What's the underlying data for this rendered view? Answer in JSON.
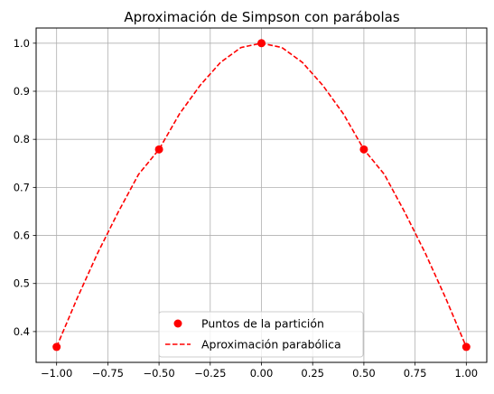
{
  "chart_data": {
    "type": "line",
    "title": "Aproximación de Simpson con parábolas",
    "xlabel": "",
    "ylabel": "",
    "xlim": [
      -1.1,
      1.1
    ],
    "ylim": [
      0.3359,
      1.0316
    ],
    "x_ticks": [
      "−1.00",
      "−0.75",
      "−0.50",
      "−0.25",
      "0.00",
      "0.25",
      "0.50",
      "0.75",
      "1.00"
    ],
    "x_tick_values": [
      -1.0,
      -0.75,
      -0.5,
      -0.25,
      0.0,
      0.25,
      0.5,
      0.75,
      1.0
    ],
    "y_ticks": [
      "0.4",
      "0.5",
      "0.6",
      "0.7",
      "0.8",
      "0.9",
      "1.0"
    ],
    "y_tick_values": [
      0.4,
      0.5,
      0.6,
      0.7,
      0.8,
      0.9,
      1.0
    ],
    "grid": true,
    "legend_position": "lower center",
    "series": [
      {
        "name": "Puntos de la partición",
        "kind": "scatter",
        "color": "#ff0000",
        "x": [
          -1.0,
          -0.5,
          0.0,
          0.5,
          1.0
        ],
        "y": [
          0.368,
          0.779,
          1.0,
          0.779,
          0.368
        ]
      },
      {
        "name": "Aproximación parabólica",
        "kind": "line",
        "style": "dashed",
        "color": "#ff0000",
        "description_of_curve": "",
        "x": [
          -1.0,
          -0.9,
          -0.8,
          -0.7,
          -0.6,
          -0.5,
          -0.4,
          -0.3,
          -0.2,
          -0.1,
          0.0,
          0.1,
          0.2,
          0.3,
          0.4,
          0.5,
          0.6,
          0.7,
          0.8,
          0.9,
          1.0
        ],
        "y": [
          0.368,
          0.469,
          0.563,
          0.648,
          0.727,
          0.779,
          0.853,
          0.912,
          0.96,
          0.991,
          1.0,
          0.991,
          0.96,
          0.912,
          0.853,
          0.779,
          0.727,
          0.648,
          0.563,
          0.469,
          0.368
        ]
      }
    ]
  }
}
